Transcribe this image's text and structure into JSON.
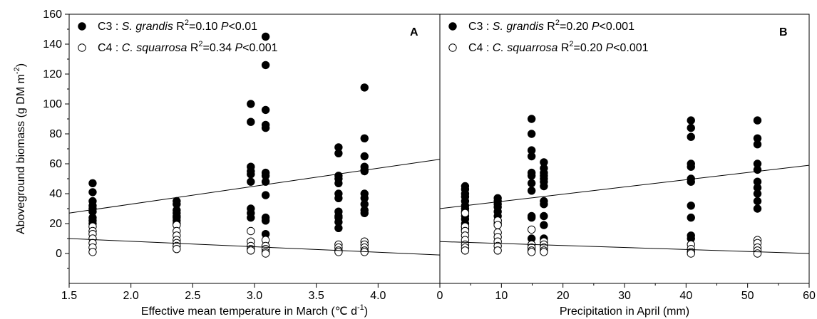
{
  "chart_data": [
    {
      "type": "scatter",
      "panel_letter": "A",
      "ylabel": "Aboveground biomass (g DM m",
      "ylabel_sup": "-2",
      "ylabel_close": ")",
      "xlabel": "Effective mean temperature in March (℃ d",
      "xlabel_sup": "-1",
      "xlabel_close": ")",
      "xlim": [
        1.5,
        4.5
      ],
      "ylim": [
        -20,
        160
      ],
      "xticks": [
        "1.5",
        "2.0",
        "2.5",
        "3.0",
        "3.5",
        "4.0"
      ],
      "xtick_values": [
        1.5,
        2.0,
        2.5,
        3.0,
        3.5,
        4.0
      ],
      "yticks": [
        "0",
        "20",
        "40",
        "60",
        "80",
        "100",
        "120",
        "140",
        "160"
      ],
      "ytick_values": [
        0,
        20,
        40,
        60,
        80,
        100,
        120,
        140,
        160
      ],
      "series": [
        {
          "name": "S. grandis",
          "legend_prefix": "C3 : ",
          "legend_species": "S. grandis",
          "legend_r": " R",
          "legend_r_sup": "2",
          "legend_r_value": "=0.10 ",
          "legend_p": "P",
          "legend_p_value": "<0.01",
          "marker": "filled",
          "x": [
            1.69,
            1.69,
            1.69,
            1.69,
            1.69,
            1.69,
            1.69,
            1.69,
            1.69,
            2.37,
            2.37,
            2.37,
            2.37,
            2.37,
            2.37,
            2.37,
            2.37,
            2.97,
            2.97,
            2.97,
            2.97,
            2.97,
            2.97,
            2.97,
            2.97,
            2.97,
            3.09,
            3.09,
            3.09,
            3.09,
            3.09,
            3.09,
            3.09,
            3.09,
            3.09,
            3.09,
            3.09,
            3.09,
            3.09,
            3.68,
            3.68,
            3.68,
            3.68,
            3.68,
            3.68,
            3.68,
            3.68,
            3.68,
            3.68,
            3.68,
            3.68,
            3.89,
            3.89,
            3.89,
            3.89,
            3.89,
            3.89,
            3.89,
            3.89,
            3.89,
            3.89,
            3.89
          ],
          "y": [
            47,
            41,
            35,
            32,
            30,
            28,
            24,
            22,
            20,
            35,
            33,
            29,
            27,
            25,
            24,
            22,
            20,
            100,
            88,
            58,
            55,
            53,
            48,
            30,
            27,
            24,
            145,
            126,
            96,
            86,
            84,
            54,
            52,
            48,
            39,
            24,
            22,
            13,
            5,
            71,
            67,
            52,
            50,
            47,
            40,
            37,
            28,
            25,
            24,
            21,
            17,
            111,
            77,
            65,
            58,
            56,
            55,
            40,
            37,
            33,
            29,
            27
          ],
          "fit": {
            "x": [
              1.5,
              4.5
            ],
            "y": [
              27,
              63
            ]
          }
        },
        {
          "name": "C. squarrosa",
          "legend_prefix": "C4 : ",
          "legend_species": "C. squarrosa",
          "legend_r": " R",
          "legend_r_sup": "2",
          "legend_r_value": "=0.34 ",
          "legend_p": "P",
          "legend_p_value": "<0.001",
          "marker": "open",
          "x": [
            1.69,
            1.69,
            1.69,
            1.69,
            1.69,
            1.69,
            1.69,
            2.37,
            2.37,
            2.37,
            2.37,
            2.37,
            2.37,
            2.37,
            2.97,
            2.97,
            2.97,
            2.97,
            2.97,
            3.09,
            3.09,
            3.09,
            3.09,
            3.09,
            3.68,
            3.68,
            3.68,
            3.68,
            3.89,
            3.89,
            3.89,
            3.89,
            3.89
          ],
          "y": [
            18,
            15,
            13,
            10,
            7,
            4,
            1,
            19,
            15,
            12,
            9,
            7,
            5,
            3,
            15,
            8,
            5,
            3,
            2,
            9,
            5,
            3,
            1,
            0,
            6,
            4,
            2,
            1,
            8,
            6,
            4,
            2,
            1
          ],
          "fit": {
            "x": [
              1.5,
              4.5
            ],
            "y": [
              10,
              -1
            ]
          }
        }
      ]
    },
    {
      "type": "scatter",
      "panel_letter": "B",
      "xlabel": "Precipitation in April (mm)",
      "xlim": [
        0,
        60
      ],
      "ylim": [
        -20,
        160
      ],
      "xticks": [
        "0",
        "10",
        "20",
        "30",
        "40",
        "50",
        "60"
      ],
      "xtick_values": [
        0,
        10,
        20,
        30,
        40,
        50,
        60
      ],
      "series": [
        {
          "name": "S. grandis",
          "legend_prefix": "C3 : ",
          "legend_species": "S. grandis",
          "legend_r": " R",
          "legend_r_sup": "2",
          "legend_r_value": "=0.20 ",
          "legend_p": "P",
          "legend_p_value": "<0.001",
          "marker": "filled",
          "x": [
            4.1,
            4.1,
            4.1,
            4.1,
            4.1,
            4.1,
            4.1,
            4.1,
            4.1,
            4.1,
            4.1,
            4.1,
            4.1,
            9.4,
            9.4,
            9.4,
            9.4,
            9.4,
            9.4,
            9.4,
            9.4,
            14.9,
            14.9,
            14.9,
            14.9,
            14.9,
            14.9,
            14.9,
            14.9,
            14.9,
            14.9,
            14.9,
            16.9,
            16.9,
            16.9,
            16.9,
            16.9,
            16.9,
            16.9,
            16.9,
            16.9,
            16.9,
            16.9,
            16.9,
            16.9,
            40.8,
            40.8,
            40.8,
            40.8,
            40.8,
            40.8,
            40.8,
            40.8,
            40.8,
            40.8,
            40.8,
            51.6,
            51.6,
            51.6,
            51.6,
            51.6,
            51.6,
            51.6,
            51.6,
            51.6,
            51.6
          ],
          "y": [
            45,
            43,
            40,
            38,
            35,
            32,
            30,
            28,
            25,
            23,
            20,
            18,
            16,
            37,
            35,
            33,
            31,
            28,
            25,
            22,
            20,
            90,
            80,
            69,
            65,
            54,
            52,
            47,
            42,
            25,
            24,
            10,
            61,
            57,
            54,
            52,
            50,
            48,
            45,
            35,
            33,
            25,
            19,
            10,
            5,
            89,
            84,
            78,
            60,
            58,
            50,
            48,
            32,
            24,
            12,
            10,
            89,
            77,
            73,
            60,
            56,
            48,
            44,
            40,
            35,
            30
          ],
          "fit": {
            "x": [
              0,
              60
            ],
            "y": [
              30,
              59
            ]
          }
        },
        {
          "name": "C. squarrosa",
          "legend_prefix": "C4 : ",
          "legend_species": "C. squarrosa",
          "legend_r": " R",
          "legend_r_sup": "2",
          "legend_r_value": "=0.20 ",
          "legend_p": "P",
          "legend_p_value": "<0.001",
          "marker": "open",
          "x": [
            4.1,
            4.1,
            4.1,
            4.1,
            4.1,
            4.1,
            4.1,
            4.1,
            9.4,
            9.4,
            9.4,
            9.4,
            9.4,
            9.4,
            9.4,
            14.9,
            14.9,
            14.9,
            14.9,
            14.9,
            16.9,
            16.9,
            16.9,
            16.9,
            16.9,
            40.8,
            40.8,
            40.8,
            40.8,
            51.6,
            51.6,
            51.6,
            51.6,
            51.6
          ],
          "y": [
            27,
            18,
            15,
            12,
            9,
            6,
            4,
            2,
            22,
            19,
            14,
            11,
            8,
            5,
            2,
            16,
            6,
            4,
            2,
            1,
            8,
            6,
            4,
            2,
            1,
            6,
            3,
            1,
            0,
            9,
            7,
            4,
            2,
            0
          ],
          "fit": {
            "x": [
              0,
              60
            ],
            "y": [
              8,
              0
            ]
          }
        }
      ]
    }
  ]
}
